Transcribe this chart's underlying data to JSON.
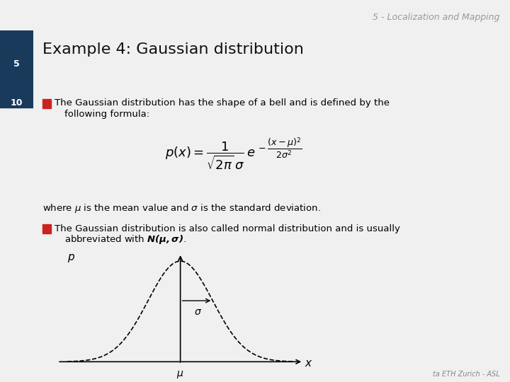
{
  "bg_color": "#f0f0f0",
  "header_bg": "#1a3a5c",
  "title_bar_bg": "#d0d8e8",
  "slide_title": "Example 4: Gaussian distribution",
  "slide_number_top": "5",
  "slide_number_bottom": "10",
  "header_text": "5 - Localization and Mapping",
  "header_color": "#cccccc",
  "bullet_color": "#cc0000",
  "bullet1_text": "The Gaussian distribution has the shape of a bell and is defined by the\n   following formula:",
  "formula": "p(x) = \\frac{1}{\\sqrt{2\\pi}\\sigma} e^{-\\frac{(x-\\mu)^2}{2\\sigma^2}}",
  "text_where": "where ",
  "text_mu_bold": "\\mu",
  "text_is_mean": " is the mean value and ",
  "text_sigma_bold": "\\sigma",
  "text_is_std": " is the standard deviation.",
  "bullet2_text": "The Gaussian distribution is also called normal distribution and is usually\n   abbreviated with ",
  "bullet2_italic": "N(",
  "bullet2_mu": "\\mu",
  "bullet2_comma": ",",
  "bullet2_sigma": "\\sigma",
  "bullet2_end": ").",
  "footer_text": "ta ETH Zurich - ASL",
  "plot_xlabel": "\\mu",
  "plot_ylabel": "p",
  "plot_sigma_label": "\\sigma"
}
